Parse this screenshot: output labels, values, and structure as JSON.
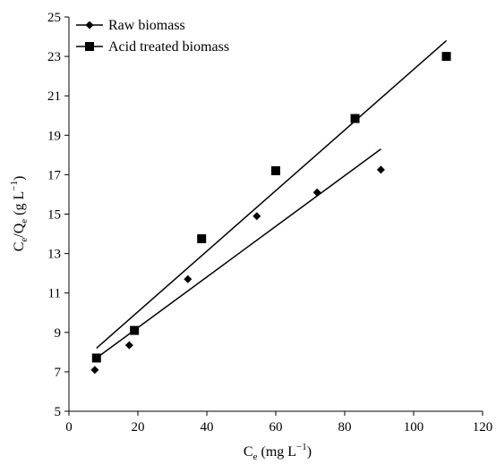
{
  "chart_data": {
    "type": "scatter",
    "xlabel": {
      "main": "C",
      "sub": "e",
      "unit_pre": " (mg L",
      "unit_sup": "−1",
      "unit_post": ")"
    },
    "ylabel": {
      "p1": "C",
      "s1": "e",
      "p2": "/Q",
      "s2": "e",
      "unit_pre": " (g L",
      "unit_sup": "−1",
      "unit_post": ")"
    },
    "xlim": [
      0,
      120
    ],
    "ylim": [
      5,
      25
    ],
    "xticks": [
      0,
      20,
      40,
      60,
      80,
      100,
      120
    ],
    "yticks": [
      5,
      7,
      9,
      11,
      13,
      15,
      17,
      19,
      21,
      23,
      25
    ],
    "grid": false,
    "legend_position": "top-left",
    "series": [
      {
        "name": "Raw biomass",
        "marker": "diamond",
        "color": "#000000",
        "points": [
          [
            7.5,
            7.1
          ],
          [
            17.5,
            8.35
          ],
          [
            34.5,
            11.7
          ],
          [
            54.5,
            14.9
          ],
          [
            72,
            16.1
          ],
          [
            90.5,
            17.25
          ]
        ],
        "fit": [
          [
            8,
            7.7
          ],
          [
            90.5,
            18.3
          ]
        ]
      },
      {
        "name": "Acid treated biomass",
        "marker": "square",
        "color": "#000000",
        "points": [
          [
            8,
            7.7
          ],
          [
            19,
            9.1
          ],
          [
            38.5,
            13.75
          ],
          [
            60,
            17.2
          ],
          [
            83,
            19.85
          ],
          [
            109.5,
            23.0
          ]
        ],
        "fit": [
          [
            8,
            8.2
          ],
          [
            109.5,
            23.8
          ]
        ]
      }
    ]
  }
}
